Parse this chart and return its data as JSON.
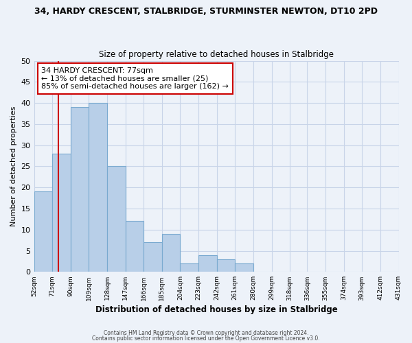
{
  "title": "34, HARDY CRESCENT, STALBRIDGE, STURMINSTER NEWTON, DT10 2PD",
  "subtitle": "Size of property relative to detached houses in Stalbridge",
  "xlabel": "Distribution of detached houses by size in Stalbridge",
  "ylabel": "Number of detached properties",
  "bin_edges": [
    52,
    71,
    90,
    109,
    128,
    147,
    166,
    185,
    204,
    223,
    242,
    261,
    280,
    299,
    318,
    336,
    355,
    374,
    393,
    412,
    431
  ],
  "bin_heights": [
    19,
    28,
    39,
    40,
    25,
    12,
    7,
    9,
    2,
    4,
    3,
    2,
    0,
    0,
    0,
    0,
    0,
    0,
    0,
    0
  ],
  "bar_color": "#b8cfe8",
  "bar_edge_color": "#7aaad0",
  "grid_color": "#c8d4e8",
  "vline_x": 77,
  "vline_color": "#cc0000",
  "annotation_line1": "34 HARDY CRESCENT: 77sqm",
  "annotation_line2": "← 13% of detached houses are smaller (25)",
  "annotation_line3": "85% of semi-detached houses are larger (162) →",
  "annotation_box_color": "#ffffff",
  "annotation_box_edge": "#cc0000",
  "ylim": [
    0,
    50
  ],
  "yticks": [
    0,
    5,
    10,
    15,
    20,
    25,
    30,
    35,
    40,
    45,
    50
  ],
  "tick_labels": [
    "52sqm",
    "71sqm",
    "90sqm",
    "109sqm",
    "128sqm",
    "147sqm",
    "166sqm",
    "185sqm",
    "204sqm",
    "223sqm",
    "242sqm",
    "261sqm",
    "280sqm",
    "299sqm",
    "318sqm",
    "336sqm",
    "355sqm",
    "374sqm",
    "393sqm",
    "412sqm",
    "431sqm"
  ],
  "footer1": "Contains HM Land Registry data © Crown copyright and database right 2024.",
  "footer2": "Contains public sector information licensed under the Open Government Licence v3.0.",
  "bg_color": "#edf2f9"
}
